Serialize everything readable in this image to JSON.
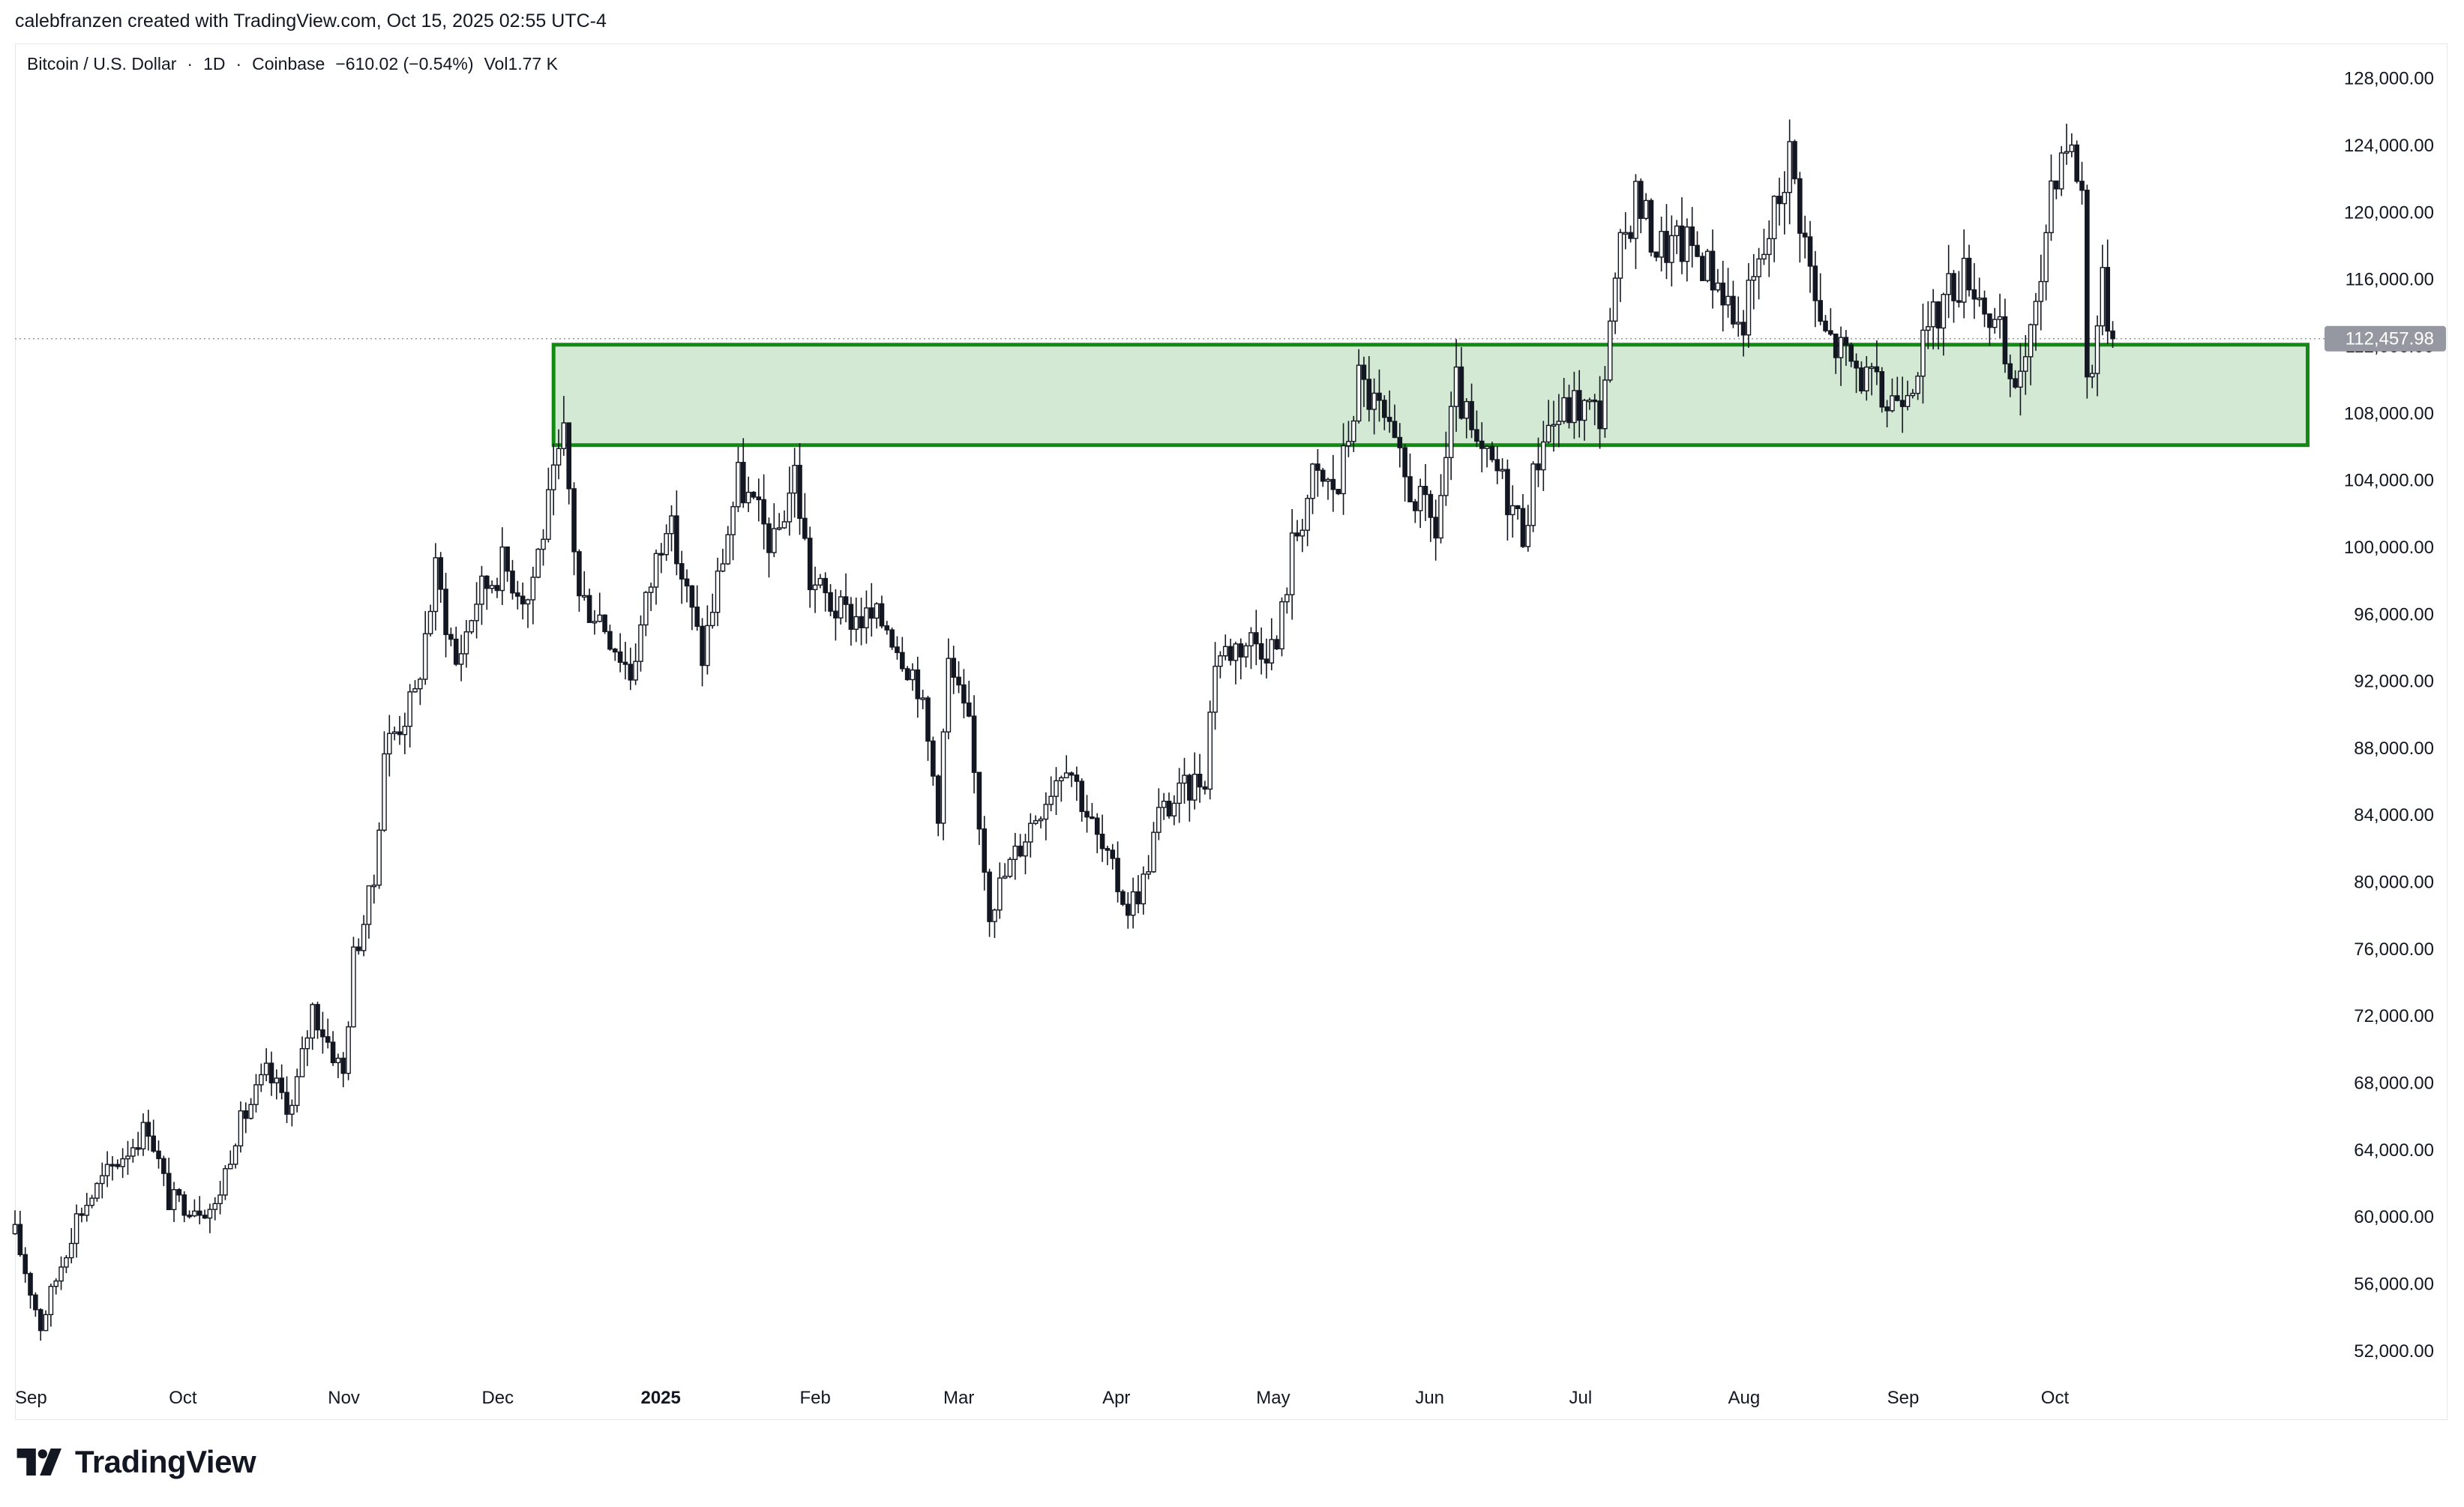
{
  "header": {
    "attribution": "calebfranzen created with TradingView.com, Oct 15, 2025 02:55 UTC-4"
  },
  "legend": {
    "symbol": "Bitcoin / U.S. Dollar",
    "interval": "1D",
    "exchange": "Coinbase",
    "change": "−610.02 (−0.54%)",
    "volume": "Vol1.77 K"
  },
  "footer": {
    "logo_text": "TradingView"
  },
  "colors": {
    "candle": "#131722",
    "zone_fill": "#d3e9d3",
    "zone_border": "#138a13",
    "price_tag": "#9598a1",
    "grid_border": "#e6e7ea"
  },
  "chart_data": {
    "type": "candlestick",
    "title": "Bitcoin / U.S. Dollar · 1D · Coinbase",
    "y_axis": {
      "position": "right",
      "ticks": [
        52000,
        56000,
        60000,
        64000,
        68000,
        72000,
        76000,
        80000,
        84000,
        88000,
        92000,
        96000,
        100000,
        104000,
        108000,
        112000,
        116000,
        120000,
        124000,
        128000
      ],
      "tick_labels": [
        "52,000.00",
        "56,000.00",
        "60,000.00",
        "64,000.00",
        "68,000.00",
        "72,000.00",
        "76,000.00",
        "80,000.00",
        "84,000.00",
        "88,000.00",
        "92,000.00",
        "96,000.00",
        "100,000.00",
        "104,000.00",
        "108,000.00",
        "112,000.00",
        "116,000.00",
        "120,000.00",
        "124,000.00",
        "128,000.00"
      ],
      "ylim": [
        48500,
        130000
      ]
    },
    "x_axis": {
      "range": [
        "2024-09-01",
        "2025-11-25"
      ],
      "ticks": [
        {
          "label": "Sep",
          "date": "2024-09-01",
          "bold": false
        },
        {
          "label": "Oct",
          "date": "2024-10-01",
          "bold": false
        },
        {
          "label": "Nov",
          "date": "2024-11-01",
          "bold": false
        },
        {
          "label": "Dec",
          "date": "2024-12-01",
          "bold": false
        },
        {
          "label": "2025",
          "date": "2025-01-01",
          "bold": true
        },
        {
          "label": "Feb",
          "date": "2025-02-01",
          "bold": false
        },
        {
          "label": "Mar",
          "date": "2025-03-01",
          "bold": false
        },
        {
          "label": "Apr",
          "date": "2025-04-01",
          "bold": false
        },
        {
          "label": "May",
          "date": "2025-05-01",
          "bold": false
        },
        {
          "label": "Jun",
          "date": "2025-06-01",
          "bold": false
        },
        {
          "label": "Jul",
          "date": "2025-07-01",
          "bold": false
        },
        {
          "label": "Aug",
          "date": "2025-08-01",
          "bold": false
        },
        {
          "label": "Sep",
          "date": "2025-09-01",
          "bold": false
        },
        {
          "label": "Oct",
          "date": "2025-10-01",
          "bold": false
        }
      ]
    },
    "last_price": 112457.98,
    "last_price_label": "112,457.98",
    "zone": {
      "from": "2024-12-15",
      "to": "2025-11-22",
      "low": 106100,
      "high": 112100
    },
    "anchors": [
      [
        "2024-09-01",
        59000
      ],
      [
        "2024-09-06",
        53500
      ],
      [
        "2024-09-13",
        60000
      ],
      [
        "2024-09-20",
        63000
      ],
      [
        "2024-09-27",
        65500
      ],
      [
        "2024-10-01",
        61000
      ],
      [
        "2024-10-10",
        60500
      ],
      [
        "2024-10-14",
        65000
      ],
      [
        "2024-10-20",
        68500
      ],
      [
        "2024-10-25",
        66500
      ],
      [
        "2024-10-29",
        72500
      ],
      [
        "2024-11-04",
        68500
      ],
      [
        "2024-11-06",
        75500
      ],
      [
        "2024-11-10",
        80000
      ],
      [
        "2024-11-12",
        88000
      ],
      [
        "2024-11-18",
        91000
      ],
      [
        "2024-11-22",
        98500
      ],
      [
        "2024-11-26",
        93000
      ],
      [
        "2024-11-30",
        97000
      ],
      [
        "2024-12-05",
        99000
      ],
      [
        "2024-12-10",
        97000
      ],
      [
        "2024-12-17",
        106500
      ],
      [
        "2024-12-20",
        97000
      ],
      [
        "2024-12-24",
        96000
      ],
      [
        "2024-12-30",
        92500
      ],
      [
        "2025-01-06",
        102000
      ],
      [
        "2025-01-13",
        93500
      ],
      [
        "2025-01-20",
        104000
      ],
      [
        "2025-01-27",
        100000
      ],
      [
        "2025-01-31",
        104500
      ],
      [
        "2025-02-03",
        98000
      ],
      [
        "2025-02-09",
        96000
      ],
      [
        "2025-02-18",
        95500
      ],
      [
        "2025-02-24",
        92000
      ],
      [
        "2025-02-28",
        84500
      ],
      [
        "2025-03-02",
        93000
      ],
      [
        "2025-03-06",
        89000
      ],
      [
        "2025-03-10",
        78500
      ],
      [
        "2025-03-18",
        83500
      ],
      [
        "2025-03-25",
        87500
      ],
      [
        "2025-03-31",
        82500
      ],
      [
        "2025-04-06",
        78500
      ],
      [
        "2025-04-09",
        80000
      ],
      [
        "2025-04-12",
        84000
      ],
      [
        "2025-04-21",
        86500
      ],
      [
        "2025-04-23",
        93500
      ],
      [
        "2025-04-30",
        94500
      ],
      [
        "2025-05-05",
        94000
      ],
      [
        "2025-05-08",
        100000
      ],
      [
        "2025-05-12",
        104000
      ],
      [
        "2025-05-17",
        103500
      ],
      [
        "2025-05-21",
        110000
      ],
      [
        "2025-05-25",
        108000
      ],
      [
        "2025-05-30",
        104000
      ],
      [
        "2025-06-05",
        101000
      ],
      [
        "2025-06-09",
        109500
      ],
      [
        "2025-06-13",
        105500
      ],
      [
        "2025-06-17",
        104500
      ],
      [
        "2025-06-22",
        101000
      ],
      [
        "2025-06-26",
        107000
      ],
      [
        "2025-07-02",
        108500
      ],
      [
        "2025-07-07",
        108000
      ],
      [
        "2025-07-11",
        117500
      ],
      [
        "2025-07-14",
        121000
      ],
      [
        "2025-07-18",
        118000
      ],
      [
        "2025-07-25",
        118000
      ],
      [
        "2025-07-31",
        115500
      ],
      [
        "2025-08-03",
        113000
      ],
      [
        "2025-08-08",
        117500
      ],
      [
        "2025-08-13",
        123500
      ],
      [
        "2025-08-19",
        113000
      ],
      [
        "2025-08-25",
        111000
      ],
      [
        "2025-09-01",
        108500
      ],
      [
        "2025-09-06",
        110500
      ],
      [
        "2025-09-13",
        115500
      ],
      [
        "2025-09-17",
        116500
      ],
      [
        "2025-09-23",
        112500
      ],
      [
        "2025-09-25",
        109000
      ],
      [
        "2025-09-30",
        113500
      ],
      [
        "2025-10-03",
        122000
      ],
      [
        "2025-10-06",
        124500
      ],
      [
        "2025-10-09",
        121500
      ],
      [
        "2025-10-10",
        110000
      ],
      [
        "2025-10-11",
        111500
      ],
      [
        "2025-10-13",
        115500
      ],
      [
        "2025-10-15",
        112458
      ]
    ]
  }
}
